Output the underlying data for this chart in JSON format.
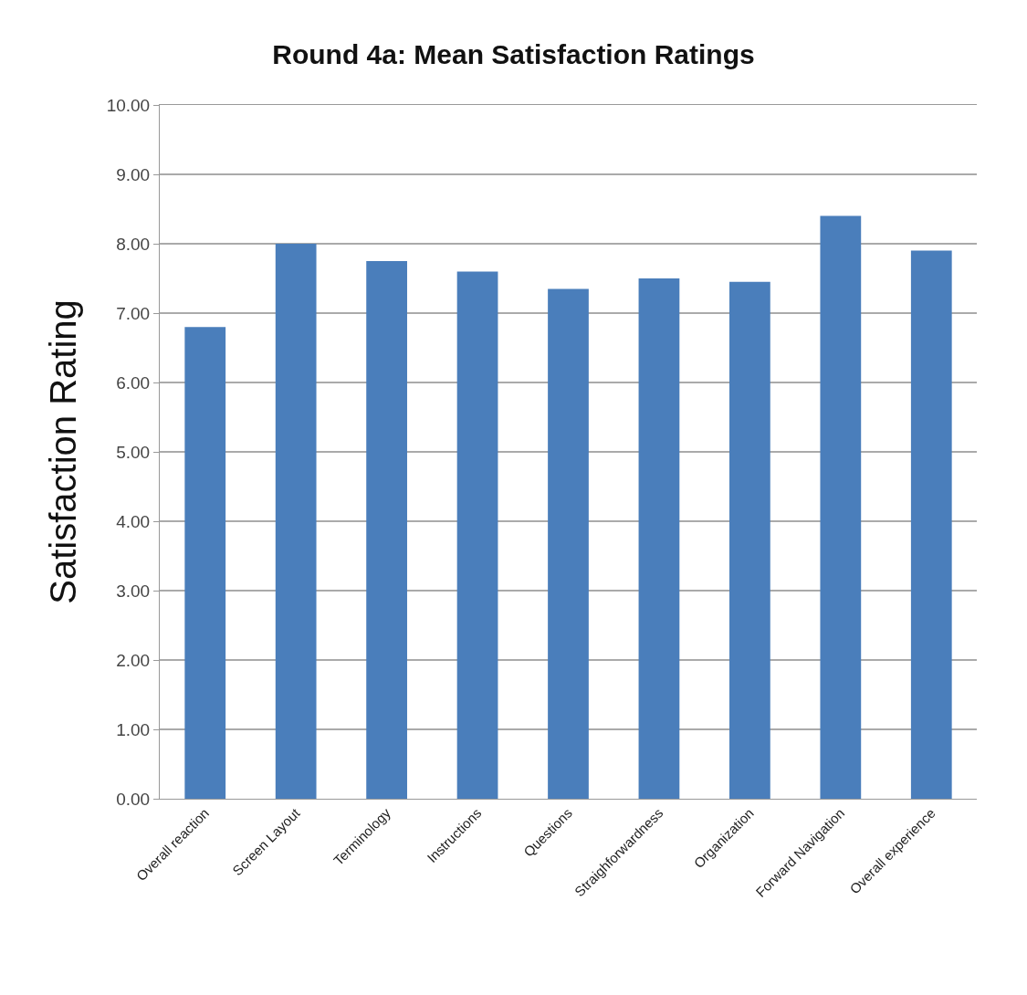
{
  "chart_data": {
    "type": "bar",
    "title": "Round 4a: Mean Satisfaction Ratings",
    "ylabel": "Satisfaction Rating",
    "categories": [
      "Overall reaction",
      "Screen Layout",
      "Terminology",
      "Instructions",
      "Questions",
      "Straighforwardness",
      "Organization",
      "Forward Navigation",
      "Overall experience"
    ],
    "values": [
      6.8,
      8.0,
      7.75,
      7.6,
      7.35,
      7.5,
      7.45,
      8.4,
      7.9
    ],
    "color": "#4a7ebb",
    "ylim": [
      0,
      10
    ],
    "yticks": [
      {
        "value": 0,
        "label": "0.00"
      },
      {
        "value": 1,
        "label": "1.00"
      },
      {
        "value": 2,
        "label": "2.00"
      },
      {
        "value": 3,
        "label": "3.00"
      },
      {
        "value": 4,
        "label": "4.00"
      },
      {
        "value": 5,
        "label": "5.00"
      },
      {
        "value": 6,
        "label": "6.00"
      },
      {
        "value": 7,
        "label": "7.00"
      },
      {
        "value": 8,
        "label": "8.00"
      },
      {
        "value": 9,
        "label": "9.00"
      },
      {
        "value": 10,
        "label": "10.00"
      }
    ],
    "grid": "y"
  }
}
